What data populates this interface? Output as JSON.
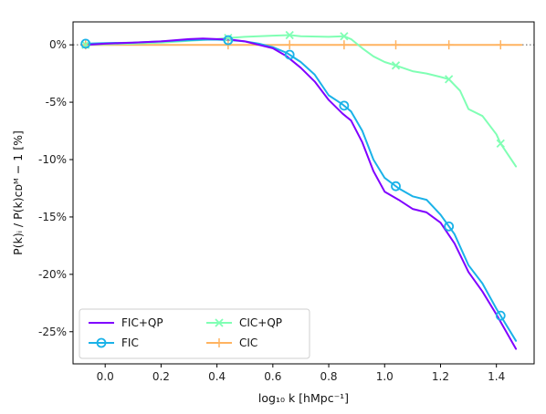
{
  "chart_data": {
    "type": "line",
    "xlabel": "log₁₀ k [hMpc⁻¹]",
    "ylabel": "P(k)ᵢ / P(k)ᴄᴅᴹ − 1 [%]",
    "xlim": [
      -0.115,
      1.535
    ],
    "ylim": [
      -27.8,
      2.0
    ],
    "x_ticks": [
      0.0,
      0.2,
      0.4,
      0.6,
      0.8,
      1.0,
      1.2,
      1.4
    ],
    "x_tick_labels": [
      "0.0",
      "0.2",
      "0.4",
      "0.6",
      "0.8",
      "1.0",
      "1.2",
      "1.4"
    ],
    "y_ticks": [
      0,
      -5,
      -10,
      -15,
      -20,
      -25
    ],
    "y_tick_labels": [
      "0%",
      "-5%",
      "-10%",
      "-15%",
      "-20%",
      "-25%"
    ],
    "reference_line": 0,
    "grid": false,
    "legend_position": "lower-left",
    "series": [
      {
        "name": "FIC+QP",
        "color": "#8000ff",
        "marker": "none",
        "x": [
          -0.07,
          0.0,
          0.1,
          0.2,
          0.3,
          0.35,
          0.4,
          0.45,
          0.5,
          0.55,
          0.6,
          0.65,
          0.7,
          0.75,
          0.8,
          0.85,
          0.88,
          0.92,
          0.96,
          1.0,
          1.05,
          1.1,
          1.15,
          1.2,
          1.25,
          1.3,
          1.35,
          1.4,
          1.47
        ],
        "values": [
          0.0,
          0.1,
          0.2,
          0.3,
          0.5,
          0.55,
          0.5,
          0.45,
          0.3,
          0.0,
          -0.3,
          -1.0,
          -2.0,
          -3.2,
          -4.8,
          -6.0,
          -6.6,
          -8.5,
          -11.0,
          -12.8,
          -13.5,
          -14.3,
          -14.6,
          -15.5,
          -17.3,
          -19.8,
          -21.5,
          -23.5,
          -26.5
        ]
      },
      {
        "name": "FIC",
        "color": "#1ab2e8",
        "marker": "circle",
        "marker_x": [
          -0.07,
          0.44,
          0.66,
          0.855,
          1.04,
          1.23,
          1.415
        ],
        "x": [
          -0.07,
          0.0,
          0.1,
          0.2,
          0.3,
          0.35,
          0.4,
          0.45,
          0.5,
          0.55,
          0.6,
          0.65,
          0.7,
          0.75,
          0.8,
          0.85,
          0.88,
          0.92,
          0.96,
          1.0,
          1.05,
          1.1,
          1.15,
          1.2,
          1.25,
          1.3,
          1.35,
          1.4,
          1.47
        ],
        "values": [
          0.1,
          0.15,
          0.2,
          0.3,
          0.4,
          0.45,
          0.45,
          0.4,
          0.3,
          0.1,
          -0.2,
          -0.7,
          -1.5,
          -2.6,
          -4.4,
          -5.2,
          -5.8,
          -7.5,
          -10.0,
          -11.6,
          -12.5,
          -13.2,
          -13.5,
          -14.8,
          -16.5,
          -19.2,
          -20.8,
          -23.0,
          -25.8
        ]
      },
      {
        "name": "CIC+QP",
        "color": "#80ffb4",
        "marker": "x",
        "marker_x": [
          -0.07,
          0.44,
          0.66,
          0.855,
          1.04,
          1.23,
          1.415
        ],
        "x": [
          -0.07,
          0.0,
          0.1,
          0.2,
          0.3,
          0.4,
          0.44,
          0.5,
          0.6,
          0.66,
          0.7,
          0.8,
          0.855,
          0.88,
          0.92,
          0.96,
          1.0,
          1.04,
          1.1,
          1.15,
          1.2,
          1.23,
          1.27,
          1.3,
          1.35,
          1.4,
          1.415,
          1.47
        ],
        "values": [
          0.0,
          0.05,
          0.1,
          0.2,
          0.35,
          0.5,
          0.6,
          0.7,
          0.8,
          0.85,
          0.75,
          0.7,
          0.75,
          0.5,
          -0.3,
          -1.0,
          -1.5,
          -1.8,
          -2.3,
          -2.5,
          -2.8,
          -3.0,
          -4.0,
          -5.6,
          -6.2,
          -7.8,
          -8.6,
          -10.6
        ]
      },
      {
        "name": "CIC",
        "color": "#ffb360",
        "marker": "plus",
        "marker_x": [
          -0.07,
          0.44,
          0.66,
          0.855,
          1.04,
          1.23,
          1.415
        ],
        "x": [
          -0.07,
          1.49
        ],
        "values": [
          0.0,
          0.0
        ]
      }
    ]
  }
}
